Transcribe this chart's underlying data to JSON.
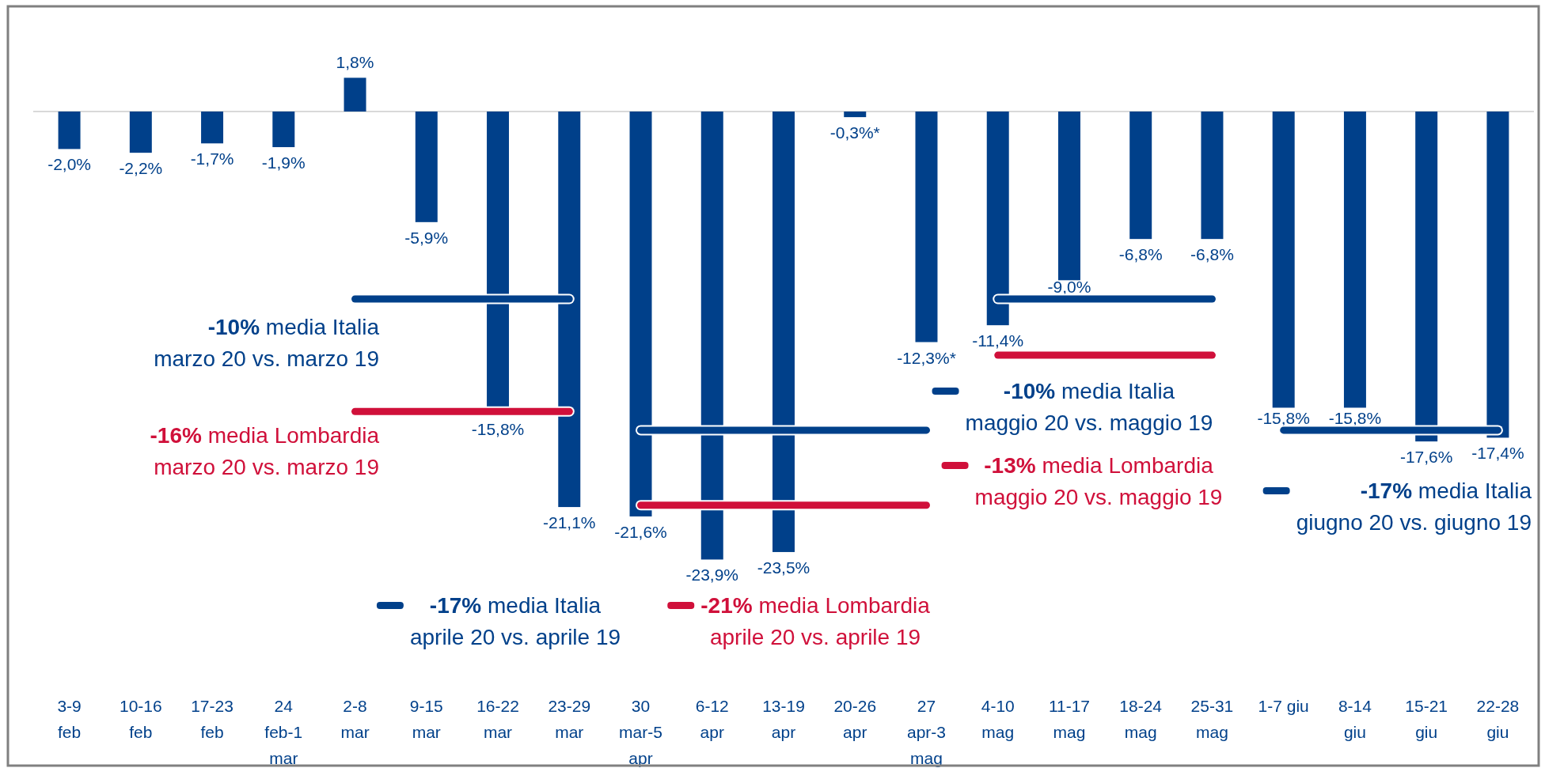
{
  "chart_data": {
    "type": "bar",
    "relative": false,
    "legend": "bottom",
    "categories": [
      "3-9\nfeb",
      "10-16\nfeb",
      "17-23\nfeb",
      "24\nfeb-1\nmar",
      "2-8\nmar",
      "9-15\nmar",
      "16-22\nmar",
      "23-29\nmar",
      "30\nmar-5\napr",
      "6-12\napr",
      "13-19\napr",
      "20-26\napr",
      "27\napr-3\nmag",
      "4-10\nmag",
      "11-17\nmag",
      "18-24\nmag",
      "25-31\nmag",
      "1-7 giu",
      "8-14\ngiu",
      "15-21\ngiu",
      "22-28\ngiu"
    ],
    "series": [
      {
        "color": "#00408a",
        "values": [
          -2.0,
          -2.2,
          -1.7,
          -1.9,
          1.8,
          -5.9,
          -15.8,
          -21.1,
          -21.6,
          -23.9,
          -23.5,
          -0.3,
          -12.3,
          -11.4,
          -9.0,
          -6.8,
          -6.8,
          -15.8,
          -15.8,
          -17.6,
          -17.4
        ],
        "value_labels": [
          "-2,0%",
          "-2,2%",
          "-1,7%",
          "-1,9%",
          "1,8%",
          "-5,9%",
          "-15,8%",
          "-21,1%",
          "-21,6%",
          "-23,9%",
          "-23,5%",
          "-0,3%*",
          "-12,3%*",
          "-11,4%",
          "-9,0%",
          "-6,8%",
          "-6,8%",
          "-15,8%",
          "-15,8%",
          "-17,6%",
          "-17,4%"
        ]
      },
      {
        "type": "line",
        "name": "-10% media Italia\nmarzo 20 vs. marzo 19",
        "color": "#00408a",
        "values": [
          null,
          null,
          null,
          null,
          -10,
          -10,
          -10,
          -10,
          null,
          null,
          null,
          null,
          null,
          null,
          null,
          null,
          null,
          null,
          null,
          null,
          null
        ]
      },
      {
        "type": "line",
        "name": "-16% media Lombardia\nmarzo 20 vs. marzo 19",
        "color": "#d0103a",
        "values": [
          null,
          null,
          null,
          null,
          -16,
          -16,
          -16,
          -16,
          null,
          null,
          null,
          null,
          null,
          null,
          null,
          null,
          null,
          null,
          null,
          null,
          null
        ]
      },
      {
        "type": "line",
        "name": "-17% media Italia\naprile 20 vs. aprile 19",
        "color": "#00408a",
        "values": [
          null,
          null,
          null,
          null,
          null,
          null,
          null,
          null,
          -17,
          -17,
          -17,
          -17,
          -17,
          null,
          null,
          null,
          null,
          null,
          null,
          null,
          null
        ]
      },
      {
        "type": "line",
        "name": "-21% media Lombardia\naprile 20 vs. aprile 19",
        "color": "#d0103a",
        "values": [
          null,
          null,
          null,
          null,
          null,
          null,
          null,
          null,
          -21,
          -21,
          -21,
          -21,
          -21,
          null,
          null,
          null,
          null,
          null,
          null,
          null,
          null
        ]
      },
      {
        "type": "line",
        "name": "-10% media Italia\nmaggio 20 vs. maggio 19",
        "color": "#00408a",
        "values": [
          null,
          null,
          null,
          null,
          null,
          null,
          null,
          null,
          null,
          null,
          null,
          null,
          null,
          -10,
          -10,
          -10,
          -10,
          null,
          null,
          null,
          null
        ]
      },
      {
        "type": "line",
        "name": "-13% media Lombardia\nmaggio 20 vs. maggio 19",
        "color": "#d0103a",
        "values": [
          null,
          null,
          null,
          null,
          null,
          null,
          null,
          null,
          null,
          null,
          null,
          null,
          null,
          -13,
          -13,
          -13,
          -13,
          null,
          null,
          null,
          null
        ]
      },
      {
        "type": "line",
        "name": "-17% media Italia\ngiugno 20 vs. giugno 19",
        "color": "#00408a",
        "values": [
          null,
          null,
          null,
          null,
          null,
          null,
          null,
          null,
          null,
          null,
          null,
          null,
          null,
          null,
          null,
          null,
          null,
          -17,
          -17,
          -17,
          -17
        ]
      }
    ]
  }
}
